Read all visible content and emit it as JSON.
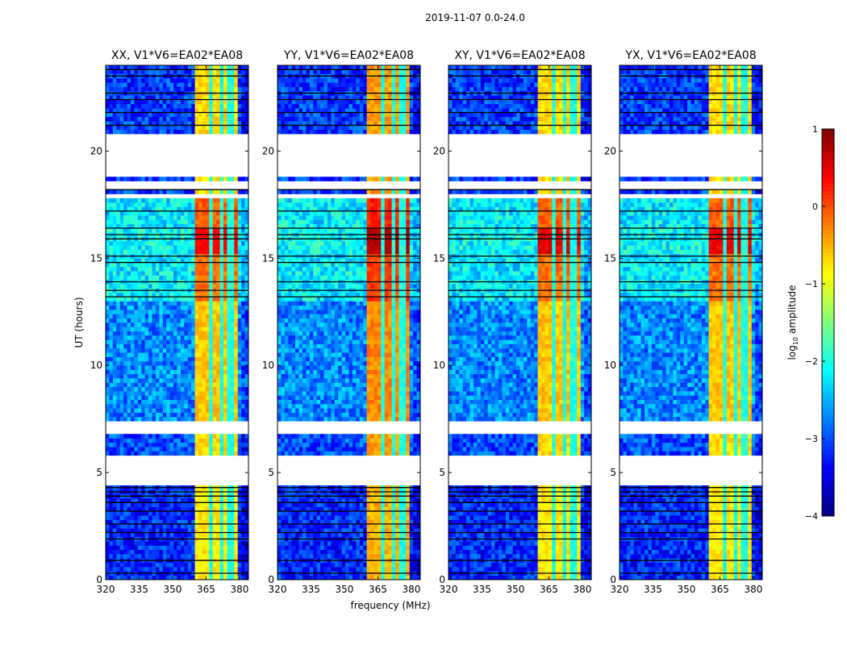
{
  "chart_data": {
    "type": "heatmap",
    "title": "2019-11-07 0.0-24.0",
    "xlabel": "frequency (MHz)",
    "ylabel": "UT (hours)",
    "xlim": [
      320,
      384
    ],
    "ylim": [
      0,
      24
    ],
    "xticks": [
      "320",
      "335",
      "350",
      "365",
      "380"
    ],
    "xtick_values": [
      320,
      335,
      350,
      365,
      380
    ],
    "yticks": [
      "0",
      "5",
      "10",
      "15",
      "20"
    ],
    "ytick_values": [
      0,
      5,
      10,
      15,
      20
    ],
    "colorbar": {
      "label_main": "log",
      "label_sub": "10",
      "label_rest": " amplitude",
      "colormap": "jet",
      "range": [
        -4,
        1
      ],
      "ticks": [
        "1",
        "0",
        "−1",
        "−2",
        "−3",
        "−4"
      ],
      "tick_values": [
        1,
        0,
        -1,
        -2,
        -3,
        -4
      ]
    },
    "panels": [
      {
        "title": "XX, V1*V6=EA02*EA08",
        "band_offset": 0.0,
        "peak": 0.4
      },
      {
        "title": "YY, V1*V6=EA02*EA08",
        "band_offset": 0.3,
        "peak": 0.8
      },
      {
        "title": "XY, V1*V6=EA02*EA08",
        "band_offset": 0.0,
        "peak": 0.7
      },
      {
        "title": "YX, V1*V6=EA02*EA08",
        "band_offset": 0.0,
        "peak": 0.6
      }
    ],
    "rfi_band_mhz": [
      360,
      379.5
    ],
    "band_gaps_mhz": [
      367,
      372,
      376
    ],
    "time_segments": [
      {
        "t": [
          0,
          4.4
        ],
        "background": -3.2,
        "band": -0.8
      },
      {
        "t": [
          5.8,
          6.85
        ],
        "background": -3.0,
        "band": -0.7
      },
      {
        "t": [
          7.4,
          13.0
        ],
        "background": -2.7,
        "band": -0.6
      },
      {
        "t": [
          13.0,
          15.3
        ],
        "background": -2.2,
        "band": -0.2
      },
      {
        "t": [
          15.3,
          16.5
        ],
        "background": -2.1,
        "band": 0.5
      },
      {
        "t": [
          16.5,
          17.75
        ],
        "background": -2.2,
        "band": -0.1
      },
      {
        "t": [
          17.75,
          24.0
        ],
        "background": -3.1,
        "band": -0.7
      }
    ],
    "flagged_hours": [
      [
        4.4,
        5.8
      ],
      [
        6.85,
        7.4
      ],
      [
        17.75,
        18.05
      ],
      [
        18.3,
        18.65
      ],
      [
        18.8,
        20.9
      ]
    ],
    "dark_lines_hours": [
      0.3,
      0.9,
      1.9,
      2.2,
      2.6,
      3.2,
      3.6,
      3.9,
      4.1,
      4.3,
      13.2,
      13.5,
      13.9,
      14.8,
      15.1,
      15.9,
      16.1,
      16.4,
      17.2,
      18.2,
      21.2,
      21.8,
      22.4,
      22.7,
      23.5,
      23.8
    ]
  }
}
